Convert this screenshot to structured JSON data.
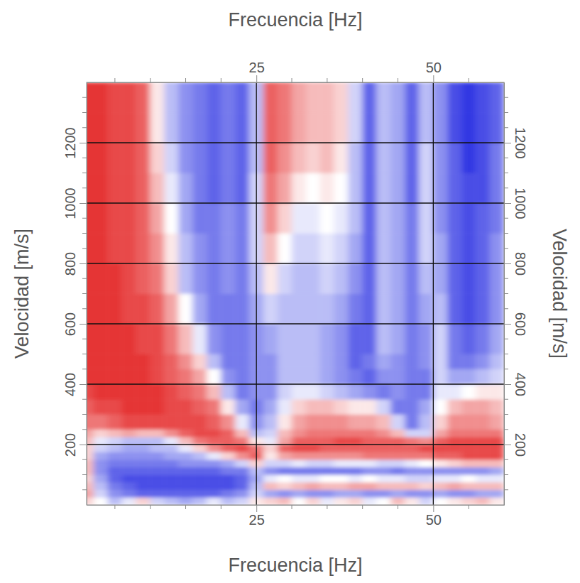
{
  "chart_data": {
    "type": "heatmap",
    "xlabel": "Frecuencia [Hz]",
    "ylabel": "Velocidad [m/s]",
    "xlim": [
      1,
      60
    ],
    "ylim": [
      0,
      1400
    ],
    "xticks": [
      25,
      50
    ],
    "yticks": [
      200,
      400,
      600,
      800,
      1000,
      1200
    ],
    "xminorticks": [
      5,
      10,
      15,
      20,
      30,
      35,
      40,
      45,
      55
    ],
    "yminorticks": [
      50,
      100,
      150,
      250,
      300,
      350,
      450,
      500,
      550,
      650,
      700,
      750,
      850,
      900,
      950,
      1050,
      1100,
      1150,
      1250,
      1300,
      1350
    ],
    "grid": true,
    "zlim": [
      -1,
      1
    ],
    "x_edges": [
      0,
      2,
      4,
      6,
      8,
      10,
      12,
      14,
      16,
      18,
      20,
      22,
      24,
      26,
      28,
      30,
      32,
      34,
      36,
      38,
      40,
      42,
      44,
      46,
      48,
      50,
      52,
      54,
      56,
      58,
      60
    ],
    "y_edges": [
      0,
      25,
      50,
      75,
      100,
      125,
      150,
      175,
      200,
      225,
      250,
      300,
      350,
      400,
      450,
      500,
      600,
      700,
      800,
      900,
      1000,
      1100,
      1200,
      1300,
      1400
    ],
    "z": [
      [
        0.2,
        0,
        -0.3,
        -0.1,
        0.2,
        -0.2,
        -0.3,
        -0.4,
        -0.3,
        -0.1,
        -0.3,
        -0.2,
        0.1,
        0.2,
        0.3,
        0,
        0.2,
        -0.1,
        0.1,
        0.2,
        -0.1,
        0,
        0.3,
        0.1,
        -0.2,
        0,
        0.1,
        0.2,
        0.3,
        0.1
      ],
      [
        0.4,
        -0.2,
        -0.5,
        -0.6,
        -0.7,
        -0.7,
        -0.7,
        -0.7,
        -0.7,
        -0.7,
        -0.6,
        -0.5,
        -0.2,
        -0.4,
        -0.5,
        -0.4,
        -0.5,
        -0.5,
        -0.4,
        -0.4,
        -0.5,
        -0.5,
        -0.4,
        -0.5,
        -0.5,
        -0.4,
        -0.5,
        -0.5,
        -0.4,
        -0.4
      ],
      [
        0.3,
        -0.3,
        -0.6,
        -0.7,
        -0.8,
        -0.8,
        -0.8,
        -0.8,
        -0.8,
        -0.8,
        -0.8,
        -0.7,
        -0.3,
        0.3,
        0.2,
        0.3,
        0.4,
        0.3,
        0.3,
        0.4,
        0.4,
        0.3,
        0.3,
        0.3,
        0.2,
        0.3,
        0.4,
        0.3,
        0.3,
        0.3
      ],
      [
        0.2,
        -0.4,
        -0.7,
        -0.8,
        -0.8,
        -0.8,
        -0.8,
        -0.8,
        -0.8,
        -0.8,
        -0.8,
        -0.7,
        -0.4,
        -0.1,
        0,
        -0.1,
        -0.1,
        0,
        0,
        -0.1,
        0,
        -0.1,
        -0.1,
        -0.2,
        -0.2,
        -0.1,
        -0.1,
        0,
        -0.1,
        -0.1
      ],
      [
        0.3,
        -0.5,
        -0.7,
        -0.7,
        -0.7,
        -0.7,
        -0.7,
        -0.7,
        -0.7,
        -0.7,
        -0.6,
        -0.6,
        -0.3,
        -0.5,
        -0.6,
        -0.6,
        -0.6,
        -0.6,
        -0.6,
        -0.6,
        -0.5,
        -0.5,
        -0.6,
        -0.5,
        -0.5,
        -0.5,
        -0.5,
        -0.5,
        -0.5,
        -0.4
      ],
      [
        0.3,
        -0.5,
        -0.6,
        -0.6,
        -0.6,
        -0.6,
        -0.6,
        -0.5,
        -0.5,
        -0.5,
        -0.4,
        -0.2,
        0.2,
        -0.2,
        -0.2,
        -0.1,
        -0.2,
        -0.2,
        -0.1,
        -0.1,
        -0.1,
        -0.2,
        -0.2,
        -0.1,
        0,
        0.1,
        0.2,
        0.3,
        0.3,
        0.3
      ],
      [
        0.2,
        -0.4,
        -0.5,
        -0.5,
        -0.5,
        -0.5,
        -0.4,
        -0.4,
        -0.3,
        -0.1,
        0.2,
        0.5,
        0.7,
        0.1,
        0.4,
        0.5,
        0.5,
        0.5,
        0.5,
        0.5,
        0.6,
        0.6,
        0.6,
        0.6,
        0.6,
        0.7,
        0.7,
        0.8,
        0.8,
        0.8
      ],
      [
        0.2,
        -0.2,
        -0.3,
        -0.4,
        -0.4,
        -0.3,
        -0.3,
        -0.1,
        0.2,
        0.5,
        0.7,
        0.8,
        0.6,
        0.2,
        0.7,
        0.8,
        0.8,
        0.7,
        0.7,
        0.7,
        0.7,
        0.7,
        0.7,
        0.7,
        0.8,
        0.8,
        0.8,
        0.8,
        0.8,
        0.8
      ],
      [
        0.3,
        -0.1,
        -0.2,
        -0.3,
        -0.3,
        -0.3,
        -0.1,
        0.3,
        0.6,
        0.7,
        0.7,
        0.6,
        0.1,
        -0.1,
        0.4,
        0.7,
        0.7,
        0.7,
        0.8,
        0.8,
        0.7,
        0.7,
        0.7,
        0.6,
        0.5,
        0.7,
        0.8,
        0.8,
        0.8,
        0.8
      ],
      [
        0.4,
        0.2,
        0.3,
        0.4,
        0.3,
        0.3,
        0.5,
        0.7,
        0.8,
        0.8,
        0.7,
        0.3,
        -0.3,
        -0.2,
        0.3,
        0.5,
        0.6,
        0.6,
        0.6,
        0.6,
        0.6,
        0.5,
        0.3,
        -0.2,
        -0.2,
        0.4,
        0.6,
        0.6,
        0.6,
        0.6
      ],
      [
        0.6,
        0.6,
        0.7,
        0.8,
        0.8,
        0.8,
        0.8,
        0.8,
        0.8,
        0.7,
        0.5,
        -0.1,
        -0.5,
        -0.3,
        0.1,
        0.4,
        0.5,
        0.5,
        0.5,
        0.4,
        0.4,
        0.3,
        -0.2,
        -0.6,
        -0.3,
        0.2,
        0.5,
        0.5,
        0.5,
        0.4
      ],
      [
        0.7,
        0.8,
        0.8,
        0.9,
        0.9,
        0.9,
        0.8,
        0.8,
        0.7,
        0.6,
        0.1,
        -0.4,
        -0.6,
        -0.4,
        -0.1,
        0.2,
        0.3,
        0.3,
        0.2,
        0.1,
        0.1,
        -0.2,
        -0.6,
        -0.6,
        -0.4,
        0,
        0.3,
        0.4,
        0.4,
        0.3
      ],
      [
        0.8,
        0.9,
        0.9,
        0.9,
        0.9,
        0.9,
        0.8,
        0.7,
        0.6,
        0.3,
        -0.3,
        -0.6,
        -0.5,
        -0.5,
        -0.2,
        -0.1,
        -0.1,
        -0.2,
        -0.3,
        -0.4,
        -0.5,
        -0.6,
        -0.5,
        -0.6,
        -0.6,
        -0.1,
        -0.1,
        0,
        0.1,
        0.1
      ],
      [
        0.9,
        0.9,
        0.9,
        0.9,
        0.9,
        0.8,
        0.7,
        0.6,
        0.4,
        0,
        -0.5,
        -0.6,
        -0.5,
        -0.5,
        -0.3,
        -0.3,
        -0.3,
        -0.4,
        -0.5,
        -0.6,
        -0.7,
        -0.5,
        -0.5,
        -0.6,
        -0.6,
        -0.2,
        -0.4,
        -0.4,
        -0.3,
        -0.2
      ],
      [
        0.9,
        0.9,
        0.9,
        0.9,
        0.9,
        0.8,
        0.7,
        0.5,
        0.2,
        -0.3,
        -0.6,
        -0.6,
        -0.5,
        -0.5,
        -0.3,
        -0.3,
        -0.3,
        -0.4,
        -0.5,
        -0.7,
        -0.6,
        -0.4,
        -0.5,
        -0.6,
        -0.5,
        -0.2,
        -0.6,
        -0.6,
        -0.5,
        -0.3
      ],
      [
        0.9,
        0.9,
        0.9,
        0.9,
        0.8,
        0.8,
        0.6,
        0.3,
        -0.1,
        -0.5,
        -0.6,
        -0.6,
        -0.5,
        -0.4,
        -0.3,
        -0.3,
        -0.3,
        -0.4,
        -0.5,
        -0.7,
        -0.7,
        -0.3,
        -0.4,
        -0.6,
        -0.5,
        -0.2,
        -0.6,
        -0.7,
        -0.6,
        -0.4
      ],
      [
        0.9,
        0.9,
        0.9,
        0.8,
        0.8,
        0.7,
        0.4,
        0,
        -0.4,
        -0.6,
        -0.6,
        -0.6,
        -0.4,
        -0.2,
        -0.3,
        -0.3,
        -0.3,
        -0.3,
        -0.4,
        -0.6,
        -0.7,
        -0.3,
        -0.4,
        -0.6,
        -0.4,
        -0.3,
        -0.7,
        -0.8,
        -0.7,
        -0.5
      ],
      [
        0.9,
        0.9,
        0.9,
        0.8,
        0.7,
        0.6,
        0.2,
        -0.3,
        -0.5,
        -0.6,
        -0.5,
        -0.6,
        -0.3,
        0.1,
        -0.2,
        -0.3,
        -0.3,
        -0.2,
        -0.3,
        -0.5,
        -0.7,
        -0.3,
        -0.4,
        -0.6,
        -0.3,
        -0.4,
        -0.7,
        -0.8,
        -0.7,
        -0.5
      ],
      [
        0.9,
        0.9,
        0.8,
        0.8,
        0.7,
        0.5,
        0.1,
        -0.3,
        -0.5,
        -0.6,
        -0.5,
        -0.6,
        -0.2,
        0.3,
        0,
        -0.2,
        -0.2,
        -0.1,
        -0.2,
        -0.4,
        -0.7,
        -0.3,
        -0.4,
        -0.6,
        -0.2,
        -0.4,
        -0.7,
        -0.8,
        -0.7,
        -0.5
      ],
      [
        0.9,
        0.9,
        0.8,
        0.8,
        0.7,
        0.4,
        0,
        -0.4,
        -0.6,
        -0.6,
        -0.5,
        -0.6,
        -0.2,
        0.5,
        0.2,
        -0.1,
        -0.1,
        0,
        -0.1,
        -0.3,
        -0.7,
        -0.3,
        -0.4,
        -0.6,
        -0.2,
        -0.5,
        -0.7,
        -0.8,
        -0.7,
        -0.6
      ],
      [
        0.9,
        0.9,
        0.8,
        0.8,
        0.7,
        0.3,
        -0.1,
        -0.4,
        -0.6,
        -0.7,
        -0.6,
        -0.7,
        -0.2,
        0.6,
        0.4,
        0.1,
        0,
        0.1,
        0,
        -0.3,
        -0.7,
        -0.3,
        -0.4,
        -0.7,
        -0.2,
        -0.5,
        -0.7,
        -0.8,
        -0.8,
        -0.6
      ],
      [
        0.9,
        0.9,
        0.8,
        0.8,
        0.7,
        0.2,
        -0.2,
        -0.5,
        -0.6,
        -0.7,
        -0.6,
        -0.7,
        -0.3,
        0.7,
        0.5,
        0.3,
        0.2,
        0.3,
        0.1,
        -0.3,
        -0.7,
        -0.3,
        -0.4,
        -0.7,
        -0.2,
        -0.5,
        -0.7,
        -0.9,
        -0.8,
        -0.6
      ],
      [
        0.9,
        0.9,
        0.8,
        0.8,
        0.7,
        0.1,
        -0.3,
        -0.5,
        -0.6,
        -0.7,
        -0.6,
        -0.7,
        -0.3,
        0.7,
        0.6,
        0.4,
        0.3,
        0.3,
        0.2,
        -0.2,
        -0.7,
        -0.3,
        -0.4,
        -0.7,
        -0.3,
        -0.5,
        -0.8,
        -0.9,
        -0.8,
        -0.7
      ],
      [
        0.9,
        0.9,
        0.8,
        0.8,
        0.7,
        0.1,
        -0.3,
        -0.5,
        -0.6,
        -0.7,
        -0.6,
        -0.7,
        -0.3,
        0.7,
        0.6,
        0.4,
        0.3,
        0.3,
        0.2,
        -0.2,
        -0.7,
        -0.3,
        -0.4,
        -0.7,
        -0.3,
        -0.5,
        -0.8,
        -0.9,
        -0.8,
        -0.7
      ]
    ]
  }
}
